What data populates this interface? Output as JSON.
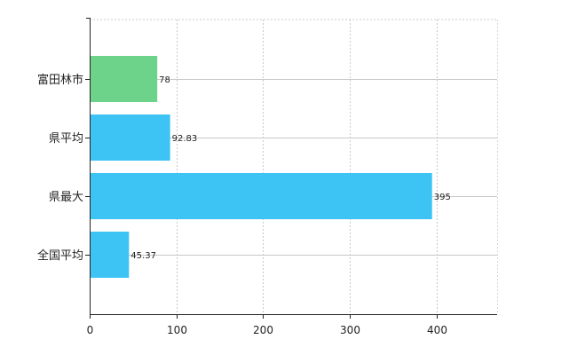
{
  "chart_data": {
    "type": "bar",
    "orientation": "horizontal",
    "categories": [
      "富田林市",
      "県平均",
      "県最大",
      "全国平均"
    ],
    "values": [
      78,
      92.83,
      395,
      45.37
    ],
    "value_labels": [
      "78",
      "92.83",
      "395",
      "45.37"
    ],
    "bar_colors": [
      "#6dd38a",
      "#3ec3f5",
      "#3ec3f5",
      "#3ec3f5"
    ],
    "xlim": [
      0,
      470
    ],
    "xticks": [
      0,
      100,
      200,
      300,
      400
    ],
    "xtick_labels": [
      "0",
      "100",
      "200",
      "300",
      "400"
    ],
    "grid": true,
    "title": "",
    "xlabel": "",
    "ylabel": ""
  }
}
